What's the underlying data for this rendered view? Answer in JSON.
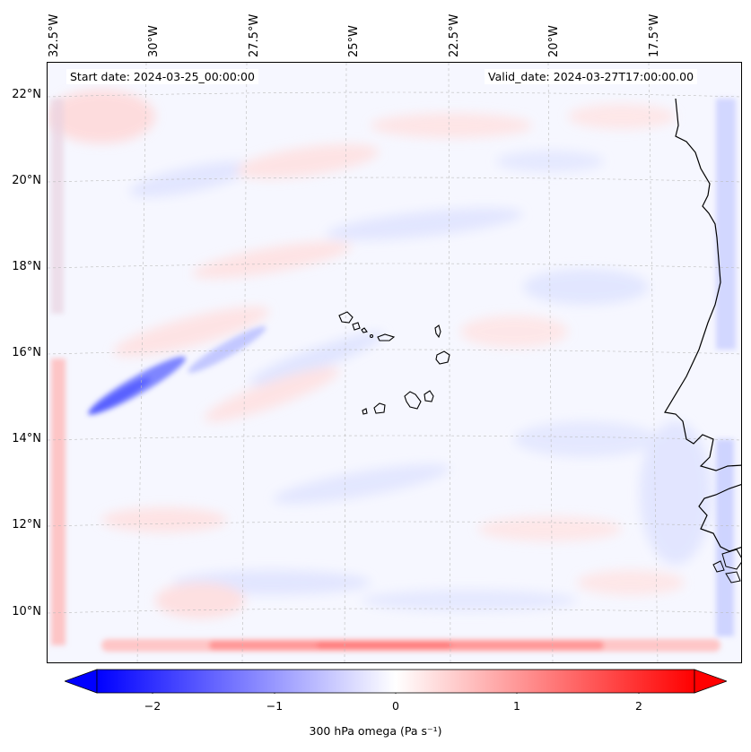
{
  "header": {
    "start_date": "Start date: 2024-03-25_00:00:00",
    "valid_date": "Valid_date: 2024-03-27T17:00:00.00"
  },
  "lon_labels": [
    "32.5°W",
    "30°W",
    "27.5°W",
    "25°W",
    "22.5°W",
    "20°W",
    "17.5°W"
  ],
  "lat_labels": [
    "22°N",
    "20°N",
    "18°N",
    "16°N",
    "14°N",
    "12°N",
    "10°N"
  ],
  "colorbar": {
    "label": "300 hPa omega (Pa s⁻¹)",
    "ticks": [
      "−2",
      "−1",
      "0",
      "1",
      "2"
    ],
    "range": [
      -2.5,
      2.5
    ],
    "extend": "both",
    "colormap": "bwr"
  },
  "colors": {
    "negative": "#0000ff",
    "zero": "#ffffff",
    "positive": "#ff0000",
    "coastline": "#000000",
    "gridline": "#bbbbbb"
  }
}
